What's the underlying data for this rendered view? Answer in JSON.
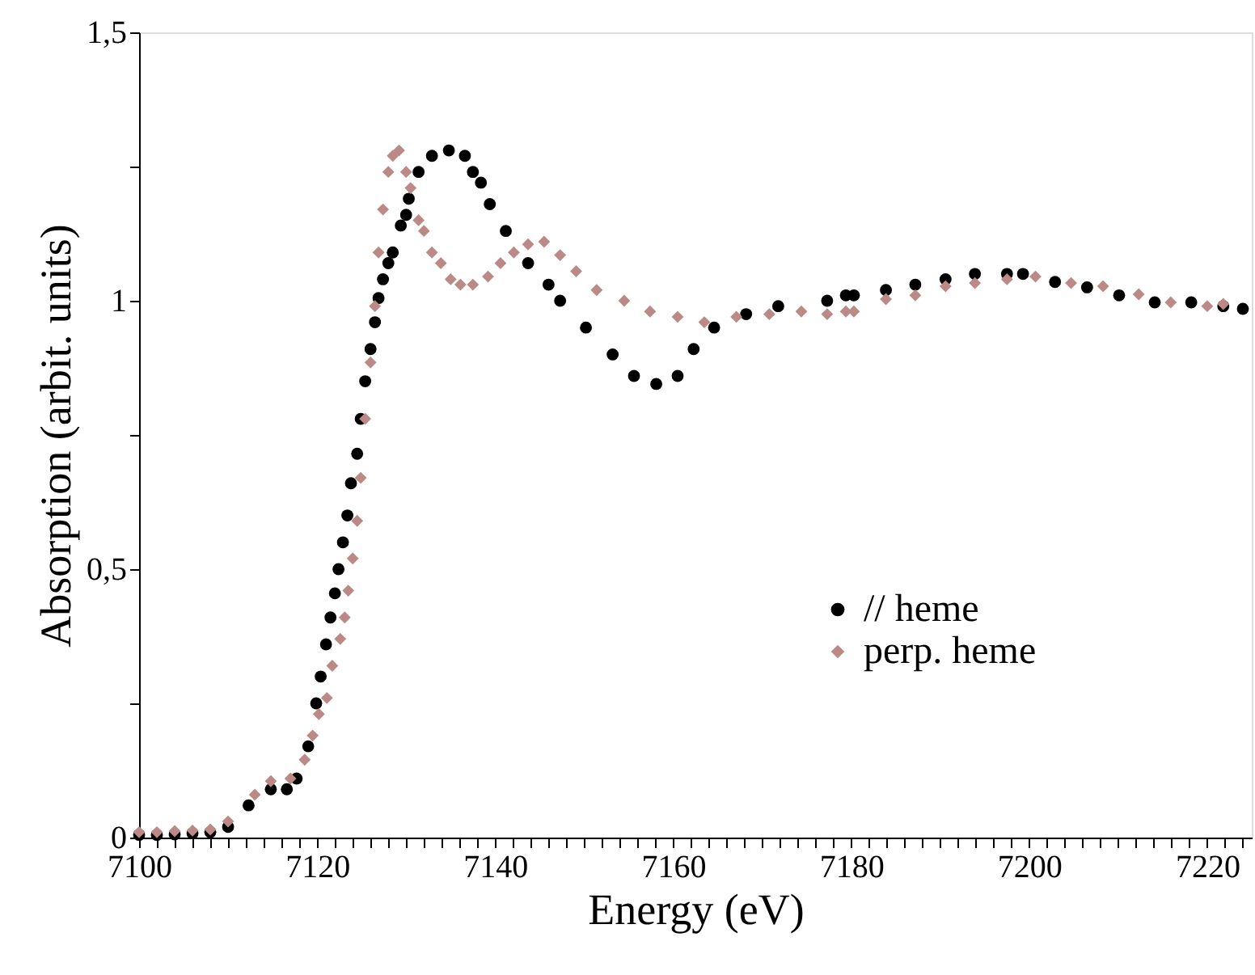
{
  "chart_data": {
    "type": "scatter",
    "xlabel": "Energy (eV)",
    "ylabel": "Absorption (arbit. units)",
    "xlim": [
      7100,
      7225
    ],
    "ylim": [
      0,
      1.5
    ],
    "xticks": [
      7100,
      {
        "value": 7102,
        "label": null
      },
      {
        "value": 7104,
        "label": null
      },
      {
        "value": 7106,
        "label": null
      },
      {
        "value": 7108,
        "label": null
      },
      {
        "value": 7110,
        "label": null
      },
      {
        "value": 7112,
        "label": null
      },
      {
        "value": 7114,
        "label": null
      },
      {
        "value": 7116,
        "label": null
      },
      {
        "value": 7118,
        "label": null
      },
      7120,
      {
        "value": 7122,
        "label": null
      },
      {
        "value": 7124,
        "label": null
      },
      {
        "value": 7126,
        "label": null
      },
      {
        "value": 7128,
        "label": null
      },
      {
        "value": 7130,
        "label": null
      },
      {
        "value": 7132,
        "label": null
      },
      {
        "value": 7134,
        "label": null
      },
      {
        "value": 7136,
        "label": null
      },
      {
        "value": 7138,
        "label": null
      },
      7140,
      {
        "value": 7142,
        "label": null
      },
      {
        "value": 7144,
        "label": null
      },
      {
        "value": 7146,
        "label": null
      },
      {
        "value": 7148,
        "label": null
      },
      {
        "value": 7150,
        "label": null
      },
      {
        "value": 7152,
        "label": null
      },
      {
        "value": 7154,
        "label": null
      },
      {
        "value": 7156,
        "label": null
      },
      {
        "value": 7158,
        "label": null
      },
      7160,
      {
        "value": 7162,
        "label": null
      },
      {
        "value": 7164,
        "label": null
      },
      {
        "value": 7166,
        "label": null
      },
      {
        "value": 7168,
        "label": null
      },
      {
        "value": 7170,
        "label": null
      },
      {
        "value": 7172,
        "label": null
      },
      {
        "value": 7174,
        "label": null
      },
      {
        "value": 7176,
        "label": null
      },
      {
        "value": 7178,
        "label": null
      },
      7180,
      {
        "value": 7182,
        "label": null
      },
      {
        "value": 7184,
        "label": null
      },
      {
        "value": 7186,
        "label": null
      },
      {
        "value": 7188,
        "label": null
      },
      {
        "value": 7190,
        "label": null
      },
      {
        "value": 7192,
        "label": null
      },
      {
        "value": 7194,
        "label": null
      },
      {
        "value": 7196,
        "label": null
      },
      {
        "value": 7198,
        "label": null
      },
      7200,
      {
        "value": 7202,
        "label": null
      },
      {
        "value": 7204,
        "label": null
      },
      {
        "value": 7206,
        "label": null
      },
      {
        "value": 7208,
        "label": null
      },
      {
        "value": 7210,
        "label": null
      },
      {
        "value": 7212,
        "label": null
      },
      {
        "value": 7214,
        "label": null
      },
      {
        "value": 7216,
        "label": null
      },
      {
        "value": 7218,
        "label": null
      },
      7220,
      {
        "value": 7222,
        "label": null
      },
      {
        "value": 7224,
        "label": null
      }
    ],
    "yticks": [
      0,
      {
        "value": 0.25,
        "label": null
      },
      {
        "value": 0.5,
        "label": "0,5"
      },
      {
        "value": 0.75,
        "label": null
      },
      1,
      {
        "value": 1.25,
        "label": null
      },
      {
        "value": 1.5,
        "label": "1,5"
      }
    ],
    "grid": false,
    "legend": "right",
    "series": [
      {
        "name": "// heme",
        "color": "#000000",
        "marker": "circle",
        "x": [
          7100,
          7102,
          7104,
          7106,
          7108,
          7110,
          7112.3,
          7114.8,
          7116.6,
          7117.7,
          7119,
          7119.9,
          7120.4,
          7121,
          7121.5,
          7122,
          7122.4,
          7122.9,
          7123.4,
          7123.8,
          7124.5,
          7124.9,
          7125.4,
          7126,
          7126.5,
          7126.9,
          7127.4,
          7128,
          7128.5,
          7129.4,
          7130,
          7130.3,
          7131.4,
          7132.9,
          7134.8,
          7136.6,
          7137.5,
          7138.4,
          7139.4,
          7141.2,
          7143.7,
          7146,
          7147.3,
          7150.2,
          7153.2,
          7155.6,
          7158.1,
          7160.5,
          7162.3,
          7164.6,
          7168.2,
          7171.8,
          7177.3,
          7179.4,
          7180.3,
          7183.9,
          7187.2,
          7190.6,
          7193.9,
          7197.5,
          7199.3,
          7202.9,
          7206.5,
          7210.1,
          7214.1,
          7218.2,
          7221.8,
          7224
        ],
        "values": [
          0.005,
          0.005,
          0.006,
          0.008,
          0.01,
          0.02,
          0.06,
          0.09,
          0.09,
          0.11,
          0.17,
          0.25,
          0.3,
          0.36,
          0.41,
          0.455,
          0.5,
          0.55,
          0.6,
          0.66,
          0.715,
          0.78,
          0.85,
          0.91,
          0.96,
          1.005,
          1.04,
          1.07,
          1.09,
          1.14,
          1.16,
          1.19,
          1.24,
          1.27,
          1.28,
          1.27,
          1.24,
          1.22,
          1.18,
          1.13,
          1.07,
          1.03,
          1.0,
          0.95,
          0.9,
          0.86,
          0.845,
          0.86,
          0.91,
          0.95,
          0.975,
          0.99,
          1.0,
          1.01,
          1.01,
          1.02,
          1.03,
          1.04,
          1.05,
          1.05,
          1.05,
          1.035,
          1.025,
          1.01,
          0.997,
          0.997,
          0.99,
          0.985
        ]
      },
      {
        "name": "perp. heme",
        "color": "#bc8a86",
        "marker": "diamond",
        "x": [
          7100,
          7102,
          7104,
          7106,
          7108,
          7110,
          7113,
          7114.8,
          7117,
          7118.6,
          7119.5,
          7120.2,
          7121.1,
          7121.7,
          7122.6,
          7123.1,
          7123.5,
          7124,
          7124.5,
          7124.9,
          7125.4,
          7126,
          7126.5,
          7126.9,
          7127.4,
          7128,
          7128.5,
          7129.2,
          7130,
          7130.5,
          7131.4,
          7132,
          7132.9,
          7133.9,
          7135,
          7136.1,
          7137.5,
          7139.2,
          7140.6,
          7142.1,
          7143.7,
          7145.5,
          7147.3,
          7149.1,
          7151.4,
          7154.5,
          7157.4,
          7160.5,
          7163.5,
          7167.1,
          7170.8,
          7174.4,
          7177.3,
          7179.4,
          7180.3,
          7183.9,
          7187.2,
          7190.6,
          7193.9,
          7197.5,
          7200.7,
          7204.7,
          7208.3,
          7212.3,
          7215.9,
          7220,
          7221.8
        ],
        "values": [
          0.01,
          0.01,
          0.012,
          0.013,
          0.015,
          0.03,
          0.08,
          0.105,
          0.11,
          0.145,
          0.19,
          0.23,
          0.26,
          0.32,
          0.37,
          0.41,
          0.46,
          0.52,
          0.59,
          0.67,
          0.78,
          0.885,
          0.99,
          1.09,
          1.17,
          1.24,
          1.27,
          1.28,
          1.24,
          1.21,
          1.15,
          1.13,
          1.09,
          1.07,
          1.04,
          1.03,
          1.03,
          1.045,
          1.07,
          1.09,
          1.105,
          1.11,
          1.085,
          1.055,
          1.02,
          1.0,
          0.98,
          0.97,
          0.96,
          0.97,
          0.975,
          0.98,
          0.975,
          0.98,
          0.98,
          1.003,
          1.01,
          1.027,
          1.033,
          1.04,
          1.045,
          1.033,
          1.027,
          1.012,
          0.997,
          0.99,
          0.994
        ]
      }
    ]
  }
}
